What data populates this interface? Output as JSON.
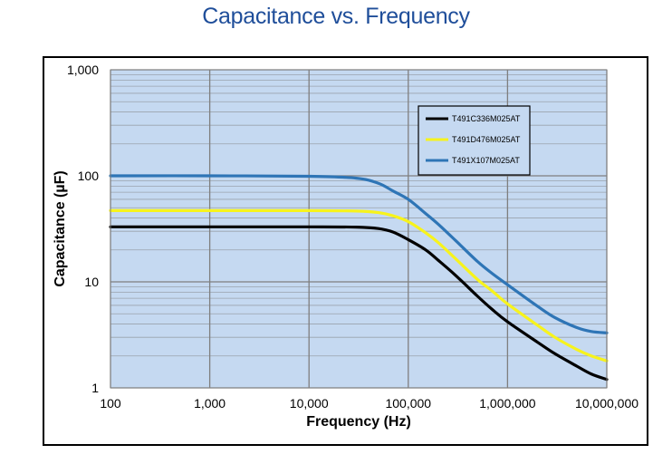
{
  "chart_data": {
    "type": "line",
    "title": "Capacitance vs. Frequency",
    "xlabel": "Frequency (Hz)",
    "ylabel": "Capacitance  (µF)",
    "x_scale": "log",
    "y_scale": "log",
    "xlim": [
      100,
      10000000
    ],
    "ylim": [
      1,
      1000
    ],
    "x_ticks": [
      "100",
      "1,000",
      "10,000",
      "100,000",
      "1,000,000",
      "10,000,000"
    ],
    "y_ticks": [
      "1",
      "10",
      "100",
      "1,000"
    ],
    "grid": true,
    "plot_background": "#c5d9f1",
    "legend_position": "top-right",
    "series": [
      {
        "name": "T491C336M025AT",
        "color": "#000000",
        "x": [
          100,
          1000,
          10000,
          30000,
          50000,
          70000,
          100000,
          150000,
          200000,
          300000,
          500000,
          700000,
          1000000,
          2000000,
          3000000,
          5000000,
          7000000,
          10000000
        ],
        "y": [
          33,
          33,
          33,
          32.8,
          31.8,
          29.5,
          25,
          20,
          16,
          11.5,
          7.3,
          5.5,
          4.2,
          2.7,
          2.1,
          1.6,
          1.35,
          1.2
        ]
      },
      {
        "name": "T491D476M025AT",
        "color": "#f7f31c",
        "x": [
          100,
          1000,
          10000,
          30000,
          50000,
          70000,
          100000,
          150000,
          200000,
          300000,
          500000,
          700000,
          1000000,
          2000000,
          3000000,
          5000000,
          7000000,
          10000000
        ],
        "y": [
          47,
          47,
          47,
          46.5,
          45,
          42,
          37,
          29,
          23.5,
          16.5,
          10.5,
          8.2,
          6.2,
          3.9,
          3.0,
          2.3,
          2.0,
          1.8
        ]
      },
      {
        "name": "T491X107M025AT",
        "color": "#2e75b6",
        "x": [
          100,
          1000,
          10000,
          30000,
          50000,
          70000,
          100000,
          150000,
          200000,
          300000,
          500000,
          700000,
          1000000,
          2000000,
          3000000,
          5000000,
          7000000,
          10000000
        ],
        "y": [
          100,
          100,
          99,
          95,
          85,
          72,
          60,
          44,
          35,
          24.5,
          15.5,
          12,
          9.4,
          5.9,
          4.6,
          3.7,
          3.4,
          3.3
        ]
      }
    ]
  }
}
